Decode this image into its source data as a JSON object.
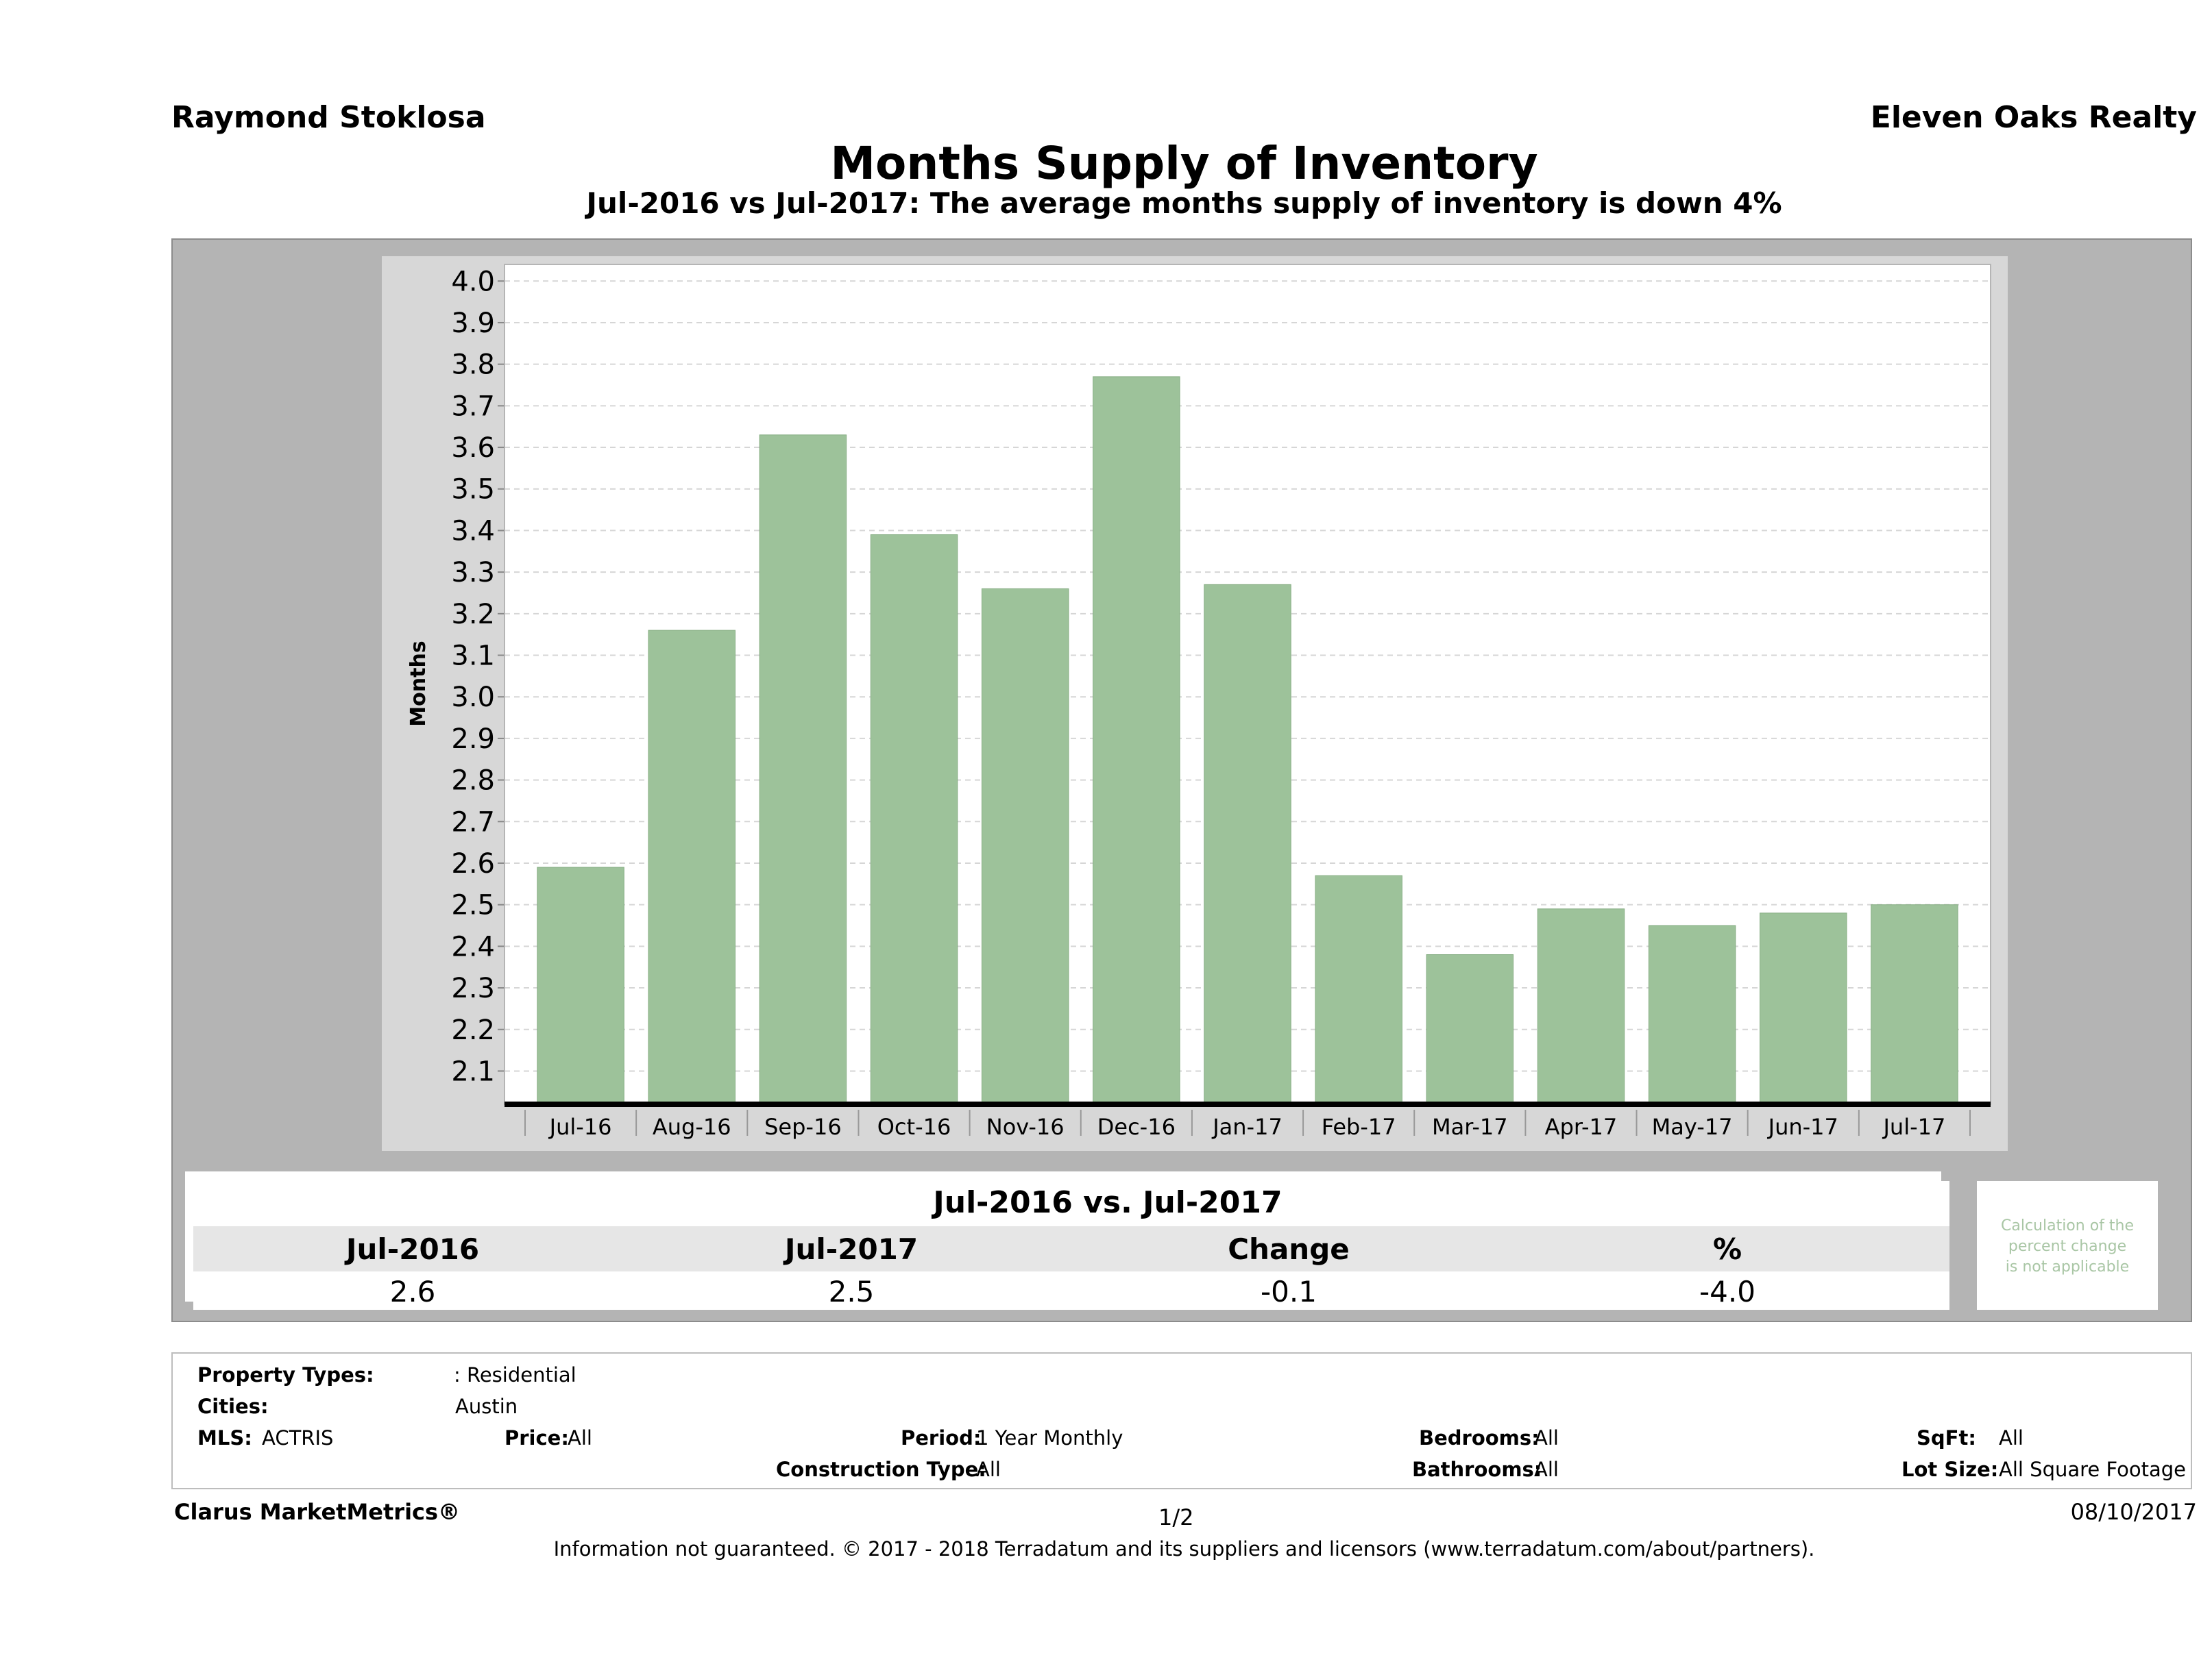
{
  "header": {
    "agent_name": "Raymond Stoklosa",
    "company": "Eleven Oaks Realty",
    "title": "Months Supply of Inventory",
    "subtitle": "Jul-2016 vs Jul-2017: The average months supply of inventory is down 4%"
  },
  "chart_data": {
    "type": "bar",
    "categories": [
      "Jul-16",
      "Aug-16",
      "Sep-16",
      "Oct-16",
      "Nov-16",
      "Dec-16",
      "Jan-17",
      "Feb-17",
      "Mar-17",
      "Apr-17",
      "May-17",
      "Jun-17",
      "Jul-17"
    ],
    "values": [
      2.59,
      3.16,
      3.63,
      3.39,
      3.26,
      3.77,
      3.27,
      2.57,
      2.38,
      2.49,
      2.45,
      2.48,
      2.5
    ],
    "title": "Months Supply of Inventory",
    "xlabel": "",
    "ylabel": "Months",
    "ylim": [
      2.02,
      4.04
    ],
    "yticks": [
      "2.1",
      "2.2",
      "2.3",
      "2.4",
      "2.5",
      "2.6",
      "2.7",
      "2.8",
      "2.9",
      "3.0",
      "3.1",
      "3.2",
      "3.3",
      "3.4",
      "3.5",
      "3.6",
      "3.7",
      "3.8",
      "3.9",
      "4.0"
    ],
    "grid": true,
    "bar_color": "#9dc29a"
  },
  "comparison": {
    "heading": "Jul-2016 vs. Jul-2017",
    "columns": [
      "Jul-2016",
      "Jul-2017",
      "Change",
      "%"
    ],
    "values": [
      "2.6",
      "2.5",
      "-0.1",
      "-4.0"
    ],
    "note": [
      "Calculation of the",
      "percent change",
      "is not applicable"
    ]
  },
  "criteria": {
    "property_types_label": "Property Types:",
    "property_types_value": ": Residential",
    "cities_label": "Cities:",
    "cities_value": "Austin",
    "mls_label": "MLS:",
    "mls_value": "ACTRIS",
    "price_label": "Price:",
    "price_value": "All",
    "period_label": "Period:",
    "period_value": "1 Year Monthly",
    "construction_label": "Construction Type:",
    "construction_value": "All",
    "bedrooms_label": "Bedrooms:",
    "bedrooms_value": "All",
    "bathrooms_label": "Bathrooms:",
    "bathrooms_value": "All",
    "sqft_label": "SqFt:",
    "sqft_value": "All",
    "lotsize_label": "Lot Size:",
    "lotsize_value": "All Square Footage"
  },
  "footer": {
    "brand": "Clarus MarketMetrics®",
    "page": "1/2",
    "date": "08/10/2017",
    "disclaimer": "Information not guaranteed. © 2017 - 2018 Terradatum and its suppliers and licensors (www.terradatum.com/about/partners)."
  }
}
